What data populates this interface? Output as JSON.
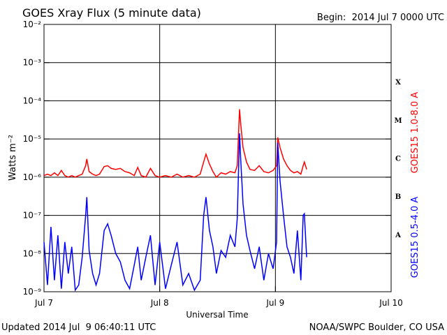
{
  "chart_data": {
    "type": "line",
    "title": "GOES Xray Flux (5 minute data)",
    "begin": "Begin:  2014 Jul 7 0000 UTC",
    "updated": "Updated 2014 Jul  9 06:40:11 UTC",
    "credit": "NOAA/SWPC Boulder, CO USA",
    "x_label": "Universal Time",
    "y_label": "Watts m⁻²",
    "log_y": true,
    "grid": true,
    "xlim": [
      0,
      3
    ],
    "xticks": [
      {
        "value": 0,
        "label": "Jul 7"
      },
      {
        "value": 1,
        "label": "Jul 8"
      },
      {
        "value": 2,
        "label": "Jul 9"
      },
      {
        "value": 3,
        "label": "Jul 10"
      }
    ],
    "ylim": [
      1e-09,
      0.01
    ],
    "yticks": [
      {
        "value": 1e-09,
        "label": "10⁻⁹"
      },
      {
        "value": 1e-08,
        "label": "10⁻⁸"
      },
      {
        "value": 1e-07,
        "label": "10⁻⁷"
      },
      {
        "value": 1e-06,
        "label": "10⁻⁶"
      },
      {
        "value": 1e-05,
        "label": "10⁻⁵"
      },
      {
        "value": 0.0001,
        "label": "10⁻⁴"
      },
      {
        "value": 0.001,
        "label": "10⁻³"
      },
      {
        "value": 0.01,
        "label": "10⁻²"
      }
    ],
    "flare_classes": [
      "X",
      "M",
      "C",
      "B",
      "A"
    ],
    "x": [
      0,
      0.03,
      0.06,
      0.09,
      0.12,
      0.15,
      0.18,
      0.21,
      0.24,
      0.27,
      0.3,
      0.33,
      0.36,
      0.37,
      0.39,
      0.42,
      0.45,
      0.48,
      0.52,
      0.55,
      0.58,
      0.62,
      0.66,
      0.7,
      0.74,
      0.78,
      0.81,
      0.84,
      0.88,
      0.92,
      0.96,
      1.0,
      1.05,
      1.1,
      1.15,
      1.2,
      1.25,
      1.3,
      1.35,
      1.38,
      1.4,
      1.43,
      1.46,
      1.49,
      1.53,
      1.57,
      1.61,
      1.65,
      1.67,
      1.69,
      1.7,
      1.72,
      1.75,
      1.78,
      1.82,
      1.86,
      1.9,
      1.94,
      1.98,
      2.01,
      2.02,
      2.04,
      2.07,
      2.1,
      2.13,
      2.16,
      2.19,
      2.22,
      2.24,
      2.25,
      2.27
    ],
    "series": [
      {
        "name": "GOES15 1.0-8.0 A",
        "color": "#ff0000",
        "values": [
          1.1e-06,
          1.2e-06,
          1.1e-06,
          1.3e-06,
          1.1e-06,
          1.5e-06,
          1.1e-06,
          1e-06,
          1.1e-06,
          1e-06,
          1.1e-06,
          1.2e-06,
          2e-06,
          3e-06,
          1.4e-06,
          1.2e-06,
          1.1e-06,
          1.2e-06,
          1.9e-06,
          2e-06,
          1.7e-06,
          1.6e-06,
          1.7e-06,
          1.4e-06,
          1.3e-06,
          1.1e-06,
          1.8e-06,
          1.1e-06,
          1e-06,
          1.7e-06,
          1.1e-06,
          1e-06,
          1.1e-06,
          1e-06,
          1.2e-06,
          1e-06,
          1.1e-06,
          1e-06,
          1.2e-06,
          2.5e-06,
          4e-06,
          2.2e-06,
          1.4e-06,
          1e-06,
          1.3e-06,
          1.2e-06,
          1.4e-06,
          1.3e-06,
          2e-06,
          6e-05,
          2.5e-05,
          6e-06,
          2.5e-06,
          1.6e-06,
          1.5e-06,
          2e-06,
          1.4e-06,
          1.3e-06,
          1.5e-06,
          2e-06,
          1.1e-05,
          6e-06,
          3e-06,
          2e-06,
          1.5e-06,
          1.3e-06,
          1.4e-06,
          1.2e-06,
          2e-06,
          2.5e-06,
          1.6e-06
        ]
      },
      {
        "name": "GOES15 0.5-4.0 A",
        "color": "#0000ff",
        "values": [
          2e-08,
          1.5e-09,
          5e-08,
          2e-09,
          3e-08,
          1.2e-09,
          2e-08,
          3e-09,
          1.5e-08,
          1.1e-09,
          1.5e-09,
          8e-09,
          1e-07,
          3e-07,
          1.2e-08,
          3e-09,
          1.5e-09,
          3e-09,
          4e-08,
          6e-08,
          3e-08,
          1e-08,
          6e-09,
          2e-09,
          1.2e-09,
          5e-09,
          1.5e-08,
          2e-09,
          8e-09,
          3e-08,
          1.5e-09,
          2e-08,
          1.2e-09,
          5e-09,
          2e-08,
          1.5e-09,
          3e-09,
          1.1e-09,
          2e-09,
          1e-07,
          3e-07,
          4e-08,
          1.5e-08,
          3e-09,
          1.2e-08,
          8e-09,
          3e-08,
          1.5e-08,
          8e-08,
          1.4e-05,
          3e-06,
          2e-07,
          3e-08,
          1.2e-08,
          4e-09,
          1.5e-08,
          2e-09,
          1e-08,
          4e-09,
          2e-08,
          8e-06,
          8e-07,
          1e-07,
          1.5e-08,
          8e-09,
          3e-09,
          4e-08,
          2e-09,
          1e-07,
          1.1e-07,
          8e-09
        ]
      }
    ]
  }
}
